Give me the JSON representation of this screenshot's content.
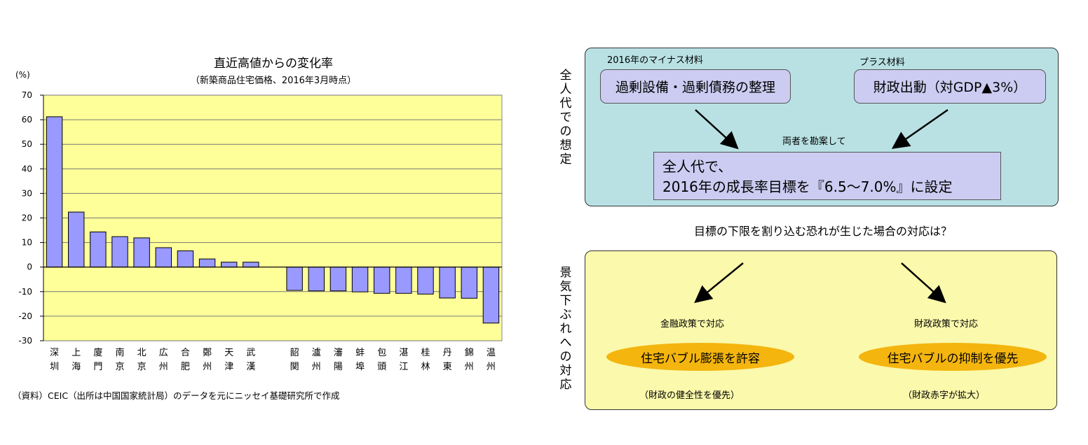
{
  "chart_data": {
    "type": "bar",
    "title": "直近高値からの変化率",
    "subtitle": "（新築商品住宅価格、2016年3月時点）",
    "ylabel": "(%)",
    "ylim": [
      -30,
      70
    ],
    "yticks": [
      70,
      60,
      50,
      40,
      30,
      20,
      10,
      0,
      -10,
      -20,
      -30
    ],
    "grid": true,
    "plot_background": "#ffff99",
    "bar_color": "#9999ff",
    "categories": [
      [
        "深",
        "圳"
      ],
      [
        "上",
        "海"
      ],
      [
        "廈",
        "門"
      ],
      [
        "南",
        "京"
      ],
      [
        "北",
        "京"
      ],
      [
        "広",
        "州"
      ],
      [
        "合",
        "肥"
      ],
      [
        "鄭",
        "州"
      ],
      [
        "天",
        "津"
      ],
      [
        "武",
        "漢"
      ],
      [
        "韶",
        "関"
      ],
      [
        "瀘",
        "州"
      ],
      [
        "瀋",
        "陽"
      ],
      [
        "蚌",
        "埠"
      ],
      [
        "包",
        "頭"
      ],
      [
        "湛",
        "江"
      ],
      [
        "桂",
        "林"
      ],
      [
        "丹",
        "東"
      ],
      [
        "錦",
        "州"
      ],
      [
        "温",
        "州"
      ]
    ],
    "values": [
      61.2,
      22.4,
      14.3,
      12.4,
      11.9,
      7.9,
      6.6,
      3.3,
      2.0,
      2.0,
      -9.5,
      -9.7,
      -9.7,
      -10.1,
      -10.7,
      -10.7,
      -11.0,
      -12.6,
      -12.7,
      -22.8
    ]
  },
  "source_note": "（資料）CEIC（出所は中国国家統計局）のデータを元にニッセイ基礎研究所で作成",
  "diagram": {
    "top_label": "全人代での想定",
    "minus_caption": "2016年のマイナス材料",
    "plus_caption": "プラス材料",
    "minus_box": "過剰設備・過剰債務の整理",
    "plus_box": "財政出動（対GDP▲3%）",
    "consider_label": "両者を勘案して",
    "result_line1": "全人代で、",
    "result_line2": "2016年の成長率目標を『6.5～7.0%』に設定",
    "question": "目標の下限を割り込む恐れが生じた場合の対応は？",
    "bottom_label": "景気下ぶれへの対応",
    "left_policy": "金融政策で対応",
    "right_policy": "財政政策で対応",
    "left_ellipse": "住宅バブル膨張を許容",
    "right_ellipse": "住宅バブルの抑制を優先",
    "left_note": "（財政の健全性を優先）",
    "right_note": "（財政赤字が拡大）"
  }
}
